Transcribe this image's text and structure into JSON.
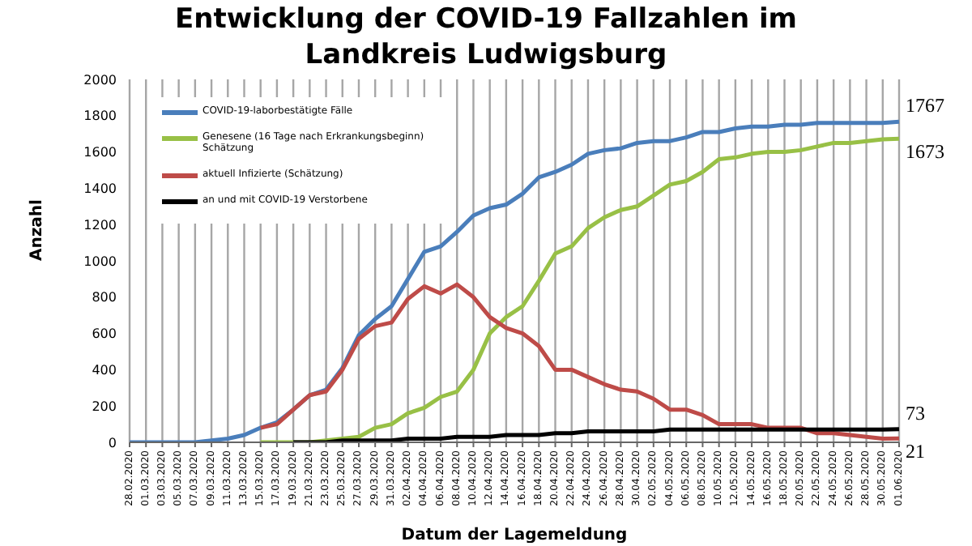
{
  "chart_data": {
    "type": "line",
    "title": "Entwicklung der COVID-19 Fallzahlen im Landkreis Ludwigsburg",
    "xlabel": "Datum der Lagemeldung",
    "ylabel": "Anzahl",
    "categories": [
      "28.02.2020",
      "01.03.2020",
      "03.03.2020",
      "05.03.2020",
      "07.03.2020",
      "09.03.2020",
      "11.03.2020",
      "13.03.2020",
      "15.03.2020",
      "17.03.2020",
      "19.03.2020",
      "21.03.2020",
      "23.03.2020",
      "25.03.2020",
      "27.03.2020",
      "29.03.2020",
      "31.03.2020",
      "02.04.2020",
      "04.04.2020",
      "06.04.2020",
      "08.04.2020",
      "10.04.2020",
      "12.04.2020",
      "14.04.2020",
      "16.04.2020",
      "18.04.2020",
      "20.04.2020",
      "22.04.2020",
      "24.04.2020",
      "26.04.2020",
      "28.04.2020",
      "30.04.2020",
      "02.05.2020",
      "04.05.2020",
      "06.05.2020",
      "08.05.2020",
      "10.05.2020",
      "12.05.2020",
      "14.05.2020",
      "16.05.2020",
      "18.05.2020",
      "20.05.2020",
      "22.05.2020",
      "24.05.2020",
      "26.05.2020",
      "28.05.2020",
      "30.05.2020",
      "01.06.2020"
    ],
    "series": [
      {
        "name": "COVID-19-laborbestätigte Fälle",
        "color": "#4a7ebb",
        "values": [
          0,
          0,
          0,
          0,
          0,
          10,
          20,
          40,
          80,
          110,
          180,
          260,
          290,
          410,
          590,
          680,
          750,
          900,
          1050,
          1080,
          1160,
          1250,
          1290,
          1310,
          1370,
          1460,
          1490,
          1530,
          1590,
          1610,
          1620,
          1650,
          1660,
          1660,
          1680,
          1710,
          1710,
          1730,
          1740,
          1740,
          1750,
          1750,
          1760,
          1760,
          1760,
          1760,
          1760,
          1767
        ],
        "value_labels": [
          null,
          null,
          null,
          null,
          null,
          null,
          null,
          null,
          null,
          null,
          null,
          null,
          null,
          null,
          null,
          null,
          null,
          null,
          null,
          null,
          null,
          null,
          null,
          null,
          null,
          null,
          null,
          null,
          null,
          null,
          null,
          null,
          null,
          null,
          null,
          null,
          null,
          null,
          null,
          null,
          null,
          null,
          null,
          null,
          null,
          null,
          null,
          "1767"
        ]
      },
      {
        "name": "Genesene (16 Tage nach Erkrankungsbeginn) Schätzung",
        "color": "#98c046",
        "values": [
          null,
          null,
          null,
          null,
          null,
          null,
          null,
          null,
          0,
          0,
          0,
          0,
          10,
          20,
          30,
          80,
          100,
          160,
          190,
          250,
          280,
          400,
          600,
          690,
          750,
          890,
          1040,
          1080,
          1180,
          1240,
          1280,
          1300,
          1360,
          1420,
          1440,
          1490,
          1560,
          1570,
          1590,
          1600,
          1600,
          1610,
          1630,
          1650,
          1650,
          1660,
          1670,
          1673
        ],
        "value_labels": [
          null,
          null,
          null,
          null,
          null,
          null,
          null,
          null,
          null,
          null,
          null,
          null,
          null,
          null,
          null,
          null,
          null,
          null,
          null,
          null,
          null,
          null,
          null,
          null,
          null,
          null,
          null,
          null,
          null,
          null,
          null,
          null,
          null,
          null,
          null,
          null,
          null,
          null,
          null,
          null,
          null,
          null,
          null,
          null,
          null,
          null,
          null,
          "1673"
        ]
      },
      {
        "name": "aktuell Infizierte (Schätzung)",
        "color": "#be4b48",
        "values": [
          null,
          null,
          null,
          null,
          null,
          null,
          null,
          null,
          80,
          100,
          180,
          260,
          280,
          400,
          570,
          640,
          660,
          790,
          860,
          820,
          870,
          800,
          690,
          630,
          600,
          530,
          400,
          400,
          360,
          320,
          290,
          280,
          240,
          180,
          180,
          150,
          100,
          100,
          100,
          80,
          80,
          80,
          50,
          50,
          40,
          30,
          20,
          21
        ],
        "value_labels": [
          null,
          null,
          null,
          null,
          null,
          null,
          null,
          null,
          null,
          null,
          null,
          null,
          null,
          null,
          null,
          null,
          null,
          null,
          null,
          null,
          null,
          null,
          null,
          null,
          null,
          null,
          null,
          null,
          null,
          null,
          null,
          null,
          null,
          null,
          null,
          null,
          null,
          null,
          null,
          null,
          null,
          null,
          null,
          null,
          null,
          null,
          null,
          "21"
        ]
      },
      {
        "name": "an und mit COVID-19 Verstorbene",
        "color": "#000000",
        "values": [
          null,
          null,
          null,
          null,
          null,
          null,
          null,
          null,
          null,
          null,
          0,
          0,
          0,
          10,
          10,
          10,
          10,
          20,
          20,
          20,
          30,
          30,
          30,
          40,
          40,
          40,
          50,
          50,
          60,
          60,
          60,
          60,
          60,
          70,
          70,
          70,
          70,
          70,
          70,
          70,
          70,
          70,
          70,
          70,
          70,
          70,
          70,
          73
        ],
        "value_labels": [
          null,
          null,
          null,
          null,
          null,
          null,
          null,
          null,
          null,
          null,
          null,
          null,
          null,
          null,
          null,
          null,
          null,
          null,
          null,
          null,
          null,
          null,
          null,
          null,
          null,
          null,
          null,
          null,
          null,
          null,
          null,
          null,
          null,
          null,
          null,
          null,
          null,
          null,
          null,
          null,
          null,
          null,
          null,
          null,
          null,
          null,
          null,
          "73"
        ]
      }
    ],
    "ylim": [
      0,
      2000
    ],
    "yticks": [
      0,
      200,
      400,
      600,
      800,
      1000,
      1200,
      1400,
      1600,
      1800,
      2000
    ],
    "grid": "x",
    "legend": "top left",
    "marker": "none",
    "line_style": "solid"
  }
}
